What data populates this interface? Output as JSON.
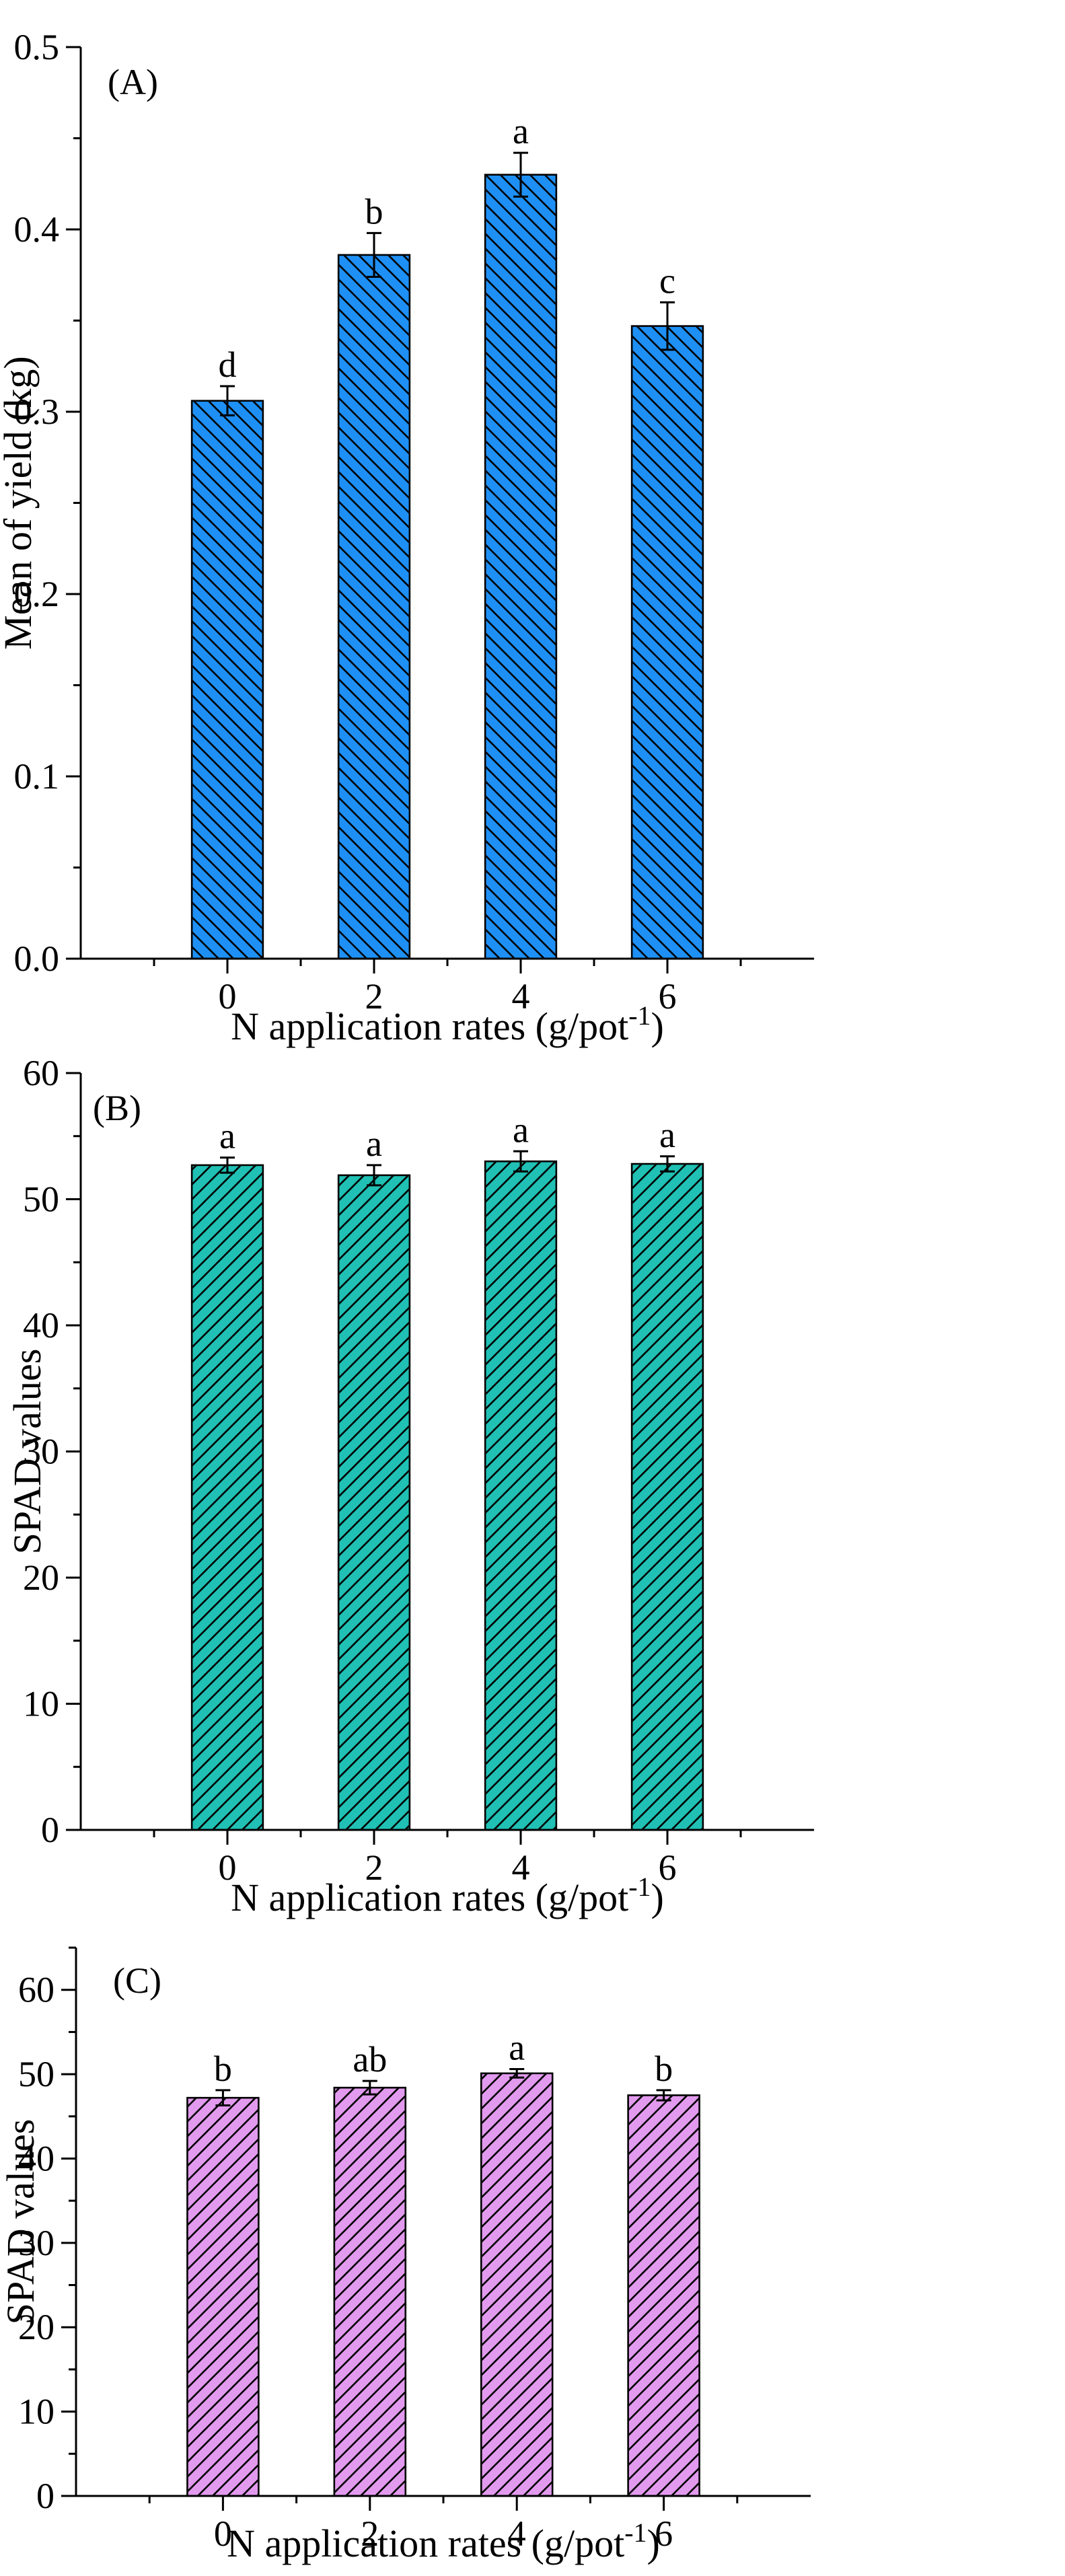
{
  "colors": {
    "panel_A_fill": "#1E90F5",
    "panel_B_fill": "#20C0B4",
    "panel_C_fill": "#E29AEE",
    "hatch_line": "#000000",
    "axis": "#000000"
  },
  "chart_data": [
    {
      "type": "bar",
      "panel_label": "(A)",
      "categories": [
        "0",
        "2",
        "4",
        "6"
      ],
      "values": [
        0.306,
        0.386,
        0.43,
        0.347
      ],
      "errors": [
        0.008,
        0.012,
        0.012,
        0.013
      ],
      "letters": [
        "d",
        "b",
        "a",
        "c"
      ],
      "xlabel": "N application rates  (g/pot",
      "xlabel_sup": "-1",
      "xlabel_end": ")",
      "ylabel": "Mean of yield (kg)",
      "ylim": [
        0,
        0.5
      ],
      "yticks": [
        "0.0",
        "0.1",
        "0.2",
        "0.3",
        "0.4",
        "0.5"
      ],
      "hatch": "back-diagonal",
      "grid": false
    },
    {
      "type": "bar",
      "panel_label": "(B)",
      "categories": [
        "0",
        "2",
        "4",
        "6"
      ],
      "values": [
        52.7,
        51.9,
        53.0,
        52.8
      ],
      "errors": [
        0.6,
        0.8,
        0.8,
        0.6
      ],
      "letters": [
        "a",
        "a",
        "a",
        "a"
      ],
      "xlabel": "N application rates (g/pot",
      "xlabel_sup": "-1",
      "xlabel_end": ")",
      "ylabel": "SPAD values",
      "ylim": [
        0,
        60
      ],
      "yticks": [
        "0",
        "10",
        "20",
        "30",
        "40",
        "50",
        "60"
      ],
      "hatch": "forward-diagonal",
      "grid": false
    },
    {
      "type": "bar",
      "panel_label": "(C)",
      "categories": [
        "0",
        "2",
        "4",
        "6"
      ],
      "values": [
        47.2,
        48.4,
        50.1,
        47.5
      ],
      "errors": [
        0.9,
        0.8,
        0.5,
        0.6
      ],
      "letters": [
        "b",
        "ab",
        "a",
        "b"
      ],
      "xlabel": "N application rates (g/pot",
      "xlabel_sup": "-1",
      "xlabel_end": ")",
      "ylabel": "SPAD values",
      "ylim": [
        0,
        65
      ],
      "yticks": [
        "0",
        "10",
        "20",
        "30",
        "40",
        "50",
        "60"
      ],
      "hatch": "forward-diagonal",
      "grid": false
    }
  ]
}
